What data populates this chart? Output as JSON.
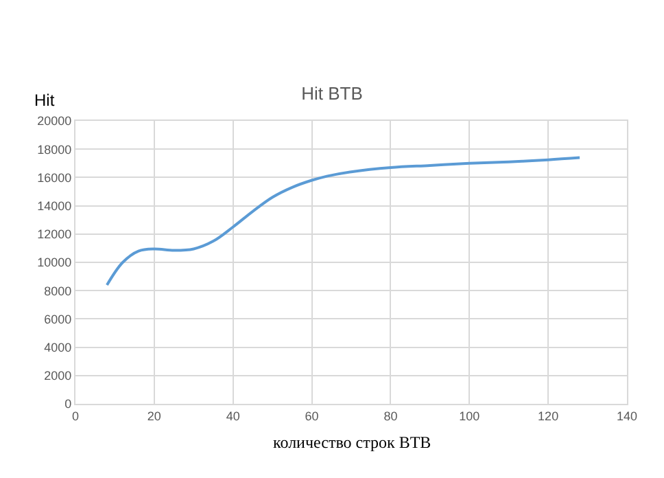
{
  "chart_data": {
    "type": "line",
    "title": "Hit BTB",
    "ylabel": "Hit",
    "xlabel": "количество строк BTB",
    "x": [
      8,
      12,
      16,
      20,
      25,
      30,
      35,
      40,
      45,
      50,
      55,
      60,
      64,
      70,
      80,
      90,
      100,
      110,
      120,
      128
    ],
    "series": [
      {
        "color": "#5b9bd5",
        "values": [
          8400,
          10000,
          10800,
          10950,
          10850,
          10950,
          11500,
          12500,
          13600,
          14600,
          15300,
          15800,
          16100,
          16400,
          16700,
          16850,
          17000,
          17100,
          17250,
          17400
        ]
      }
    ],
    "xlim": [
      0,
      140
    ],
    "xticks": [
      0,
      20,
      40,
      60,
      80,
      100,
      120,
      140
    ],
    "ylim": [
      0,
      20000
    ],
    "yticks": [
      0,
      2000,
      4000,
      6000,
      8000,
      10000,
      12000,
      14000,
      16000,
      18000,
      20000
    ],
    "grid": true,
    "legend": false,
    "marker": "none",
    "line_style": "solid"
  }
}
